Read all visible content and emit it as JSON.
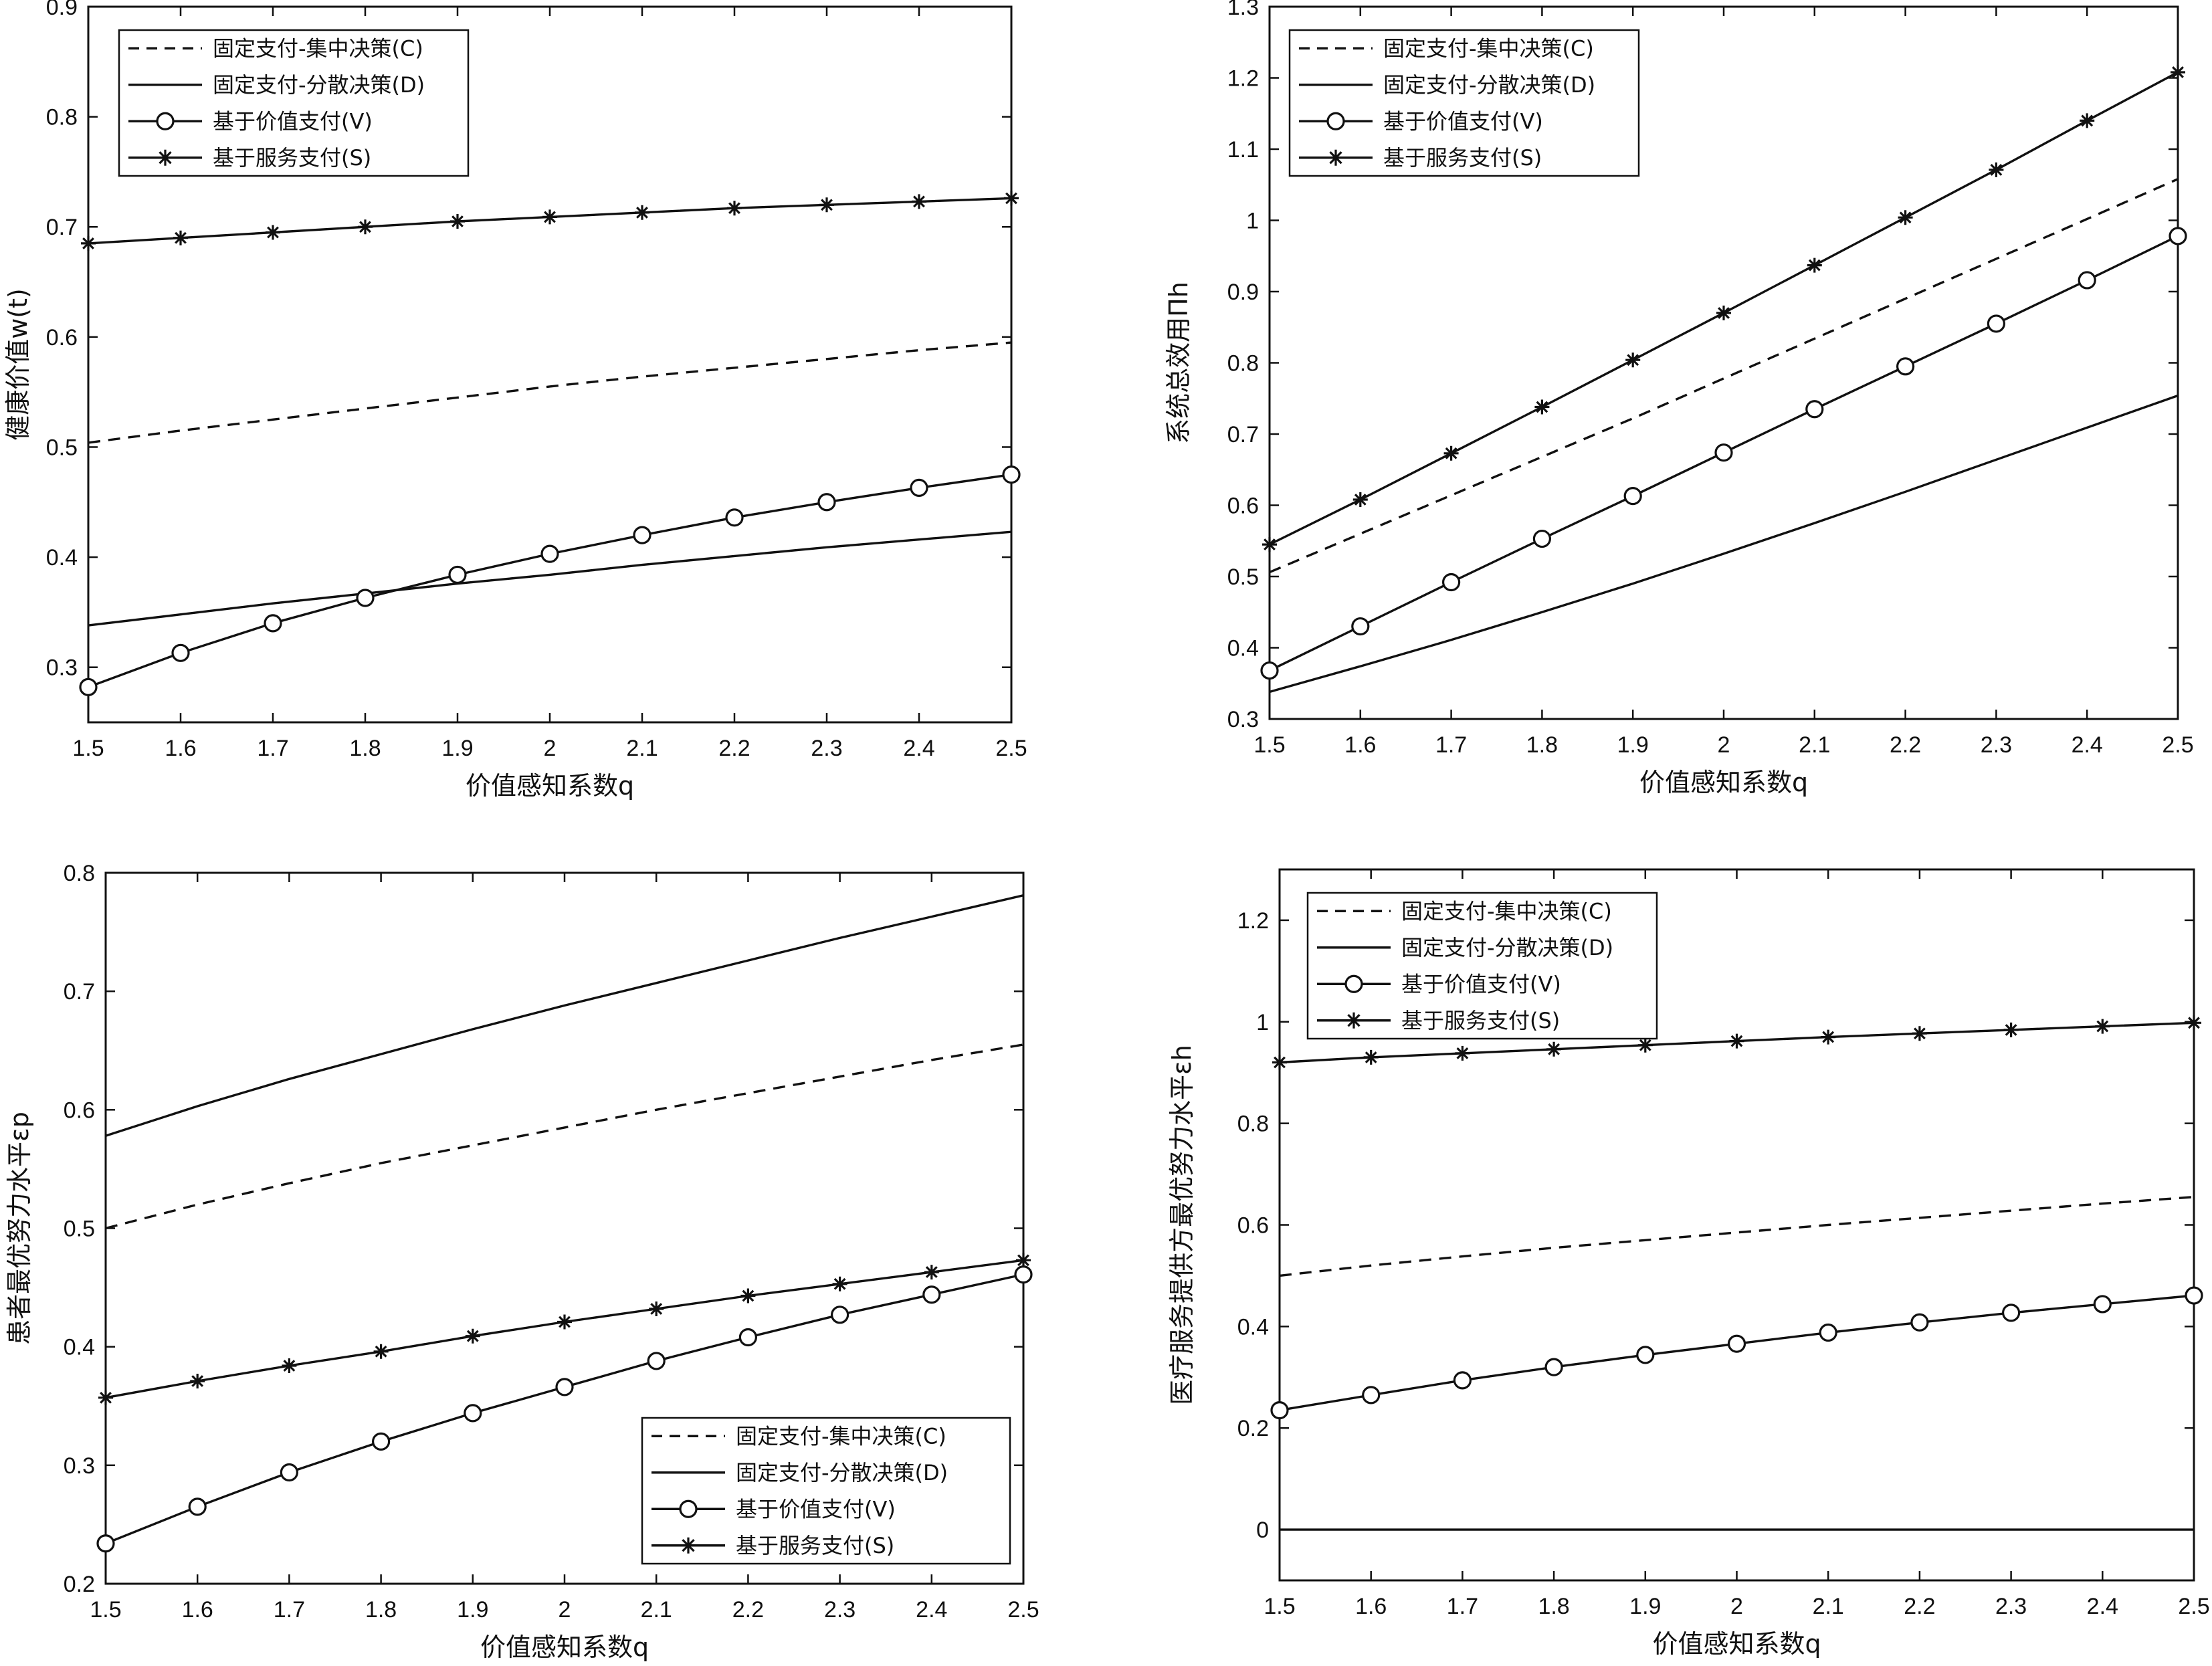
{
  "legend_labels": [
    "固定支付-集中决策(C)",
    "固定支付-分散决策(D)",
    "基于价值支付(V)",
    "基于服务支付(S)"
  ],
  "chart_data": [
    {
      "type": "line",
      "xlabel": "价值感知系数q",
      "ylabel": "健康价值w(t)",
      "x": [
        1.5,
        1.6,
        1.7,
        1.8,
        1.9,
        2.0,
        2.1,
        2.2,
        2.3,
        2.4,
        2.5
      ],
      "xticks": [
        "1.5",
        "1.6",
        "1.7",
        "1.8",
        "1.9",
        "2",
        "2.1",
        "2.2",
        "2.3",
        "2.4",
        "2.5"
      ],
      "xlim": [
        1.5,
        2.5
      ],
      "ylim": [
        0.25,
        0.9
      ],
      "yticks": [
        "0.3",
        "0.4",
        "0.5",
        "0.6",
        "0.7",
        "0.8",
        "0.9"
      ],
      "legend_position": "top-left",
      "series": [
        {
          "name": "固定支付-集中决策(C)",
          "style": "dashed",
          "values": [
            0.504,
            0.515,
            0.525,
            0.535,
            0.545,
            0.555,
            0.564,
            0.572,
            0.58,
            0.588,
            0.595
          ]
        },
        {
          "name": "固定支付-分散决策(D)",
          "style": "solid",
          "values": [
            0.338,
            0.348,
            0.358,
            0.367,
            0.376,
            0.384,
            0.393,
            0.401,
            0.409,
            0.416,
            0.423
          ]
        },
        {
          "name": "基于价值支付(V)",
          "style": "circle",
          "values": [
            0.282,
            0.313,
            0.34,
            0.363,
            0.384,
            0.403,
            0.42,
            0.436,
            0.45,
            0.463,
            0.475
          ]
        },
        {
          "name": "基于服务支付(S)",
          "style": "star",
          "values": [
            0.685,
            0.69,
            0.695,
            0.7,
            0.705,
            0.709,
            0.713,
            0.717,
            0.72,
            0.723,
            0.726
          ]
        }
      ]
    },
    {
      "type": "line",
      "xlabel": "价值感知系数q",
      "ylabel": "系统总效用Πh",
      "x": [
        1.5,
        1.6,
        1.7,
        1.8,
        1.9,
        2.0,
        2.1,
        2.2,
        2.3,
        2.4,
        2.5
      ],
      "xticks": [
        "1.5",
        "1.6",
        "1.7",
        "1.8",
        "1.9",
        "2",
        "2.1",
        "2.2",
        "2.3",
        "2.4",
        "2.5"
      ],
      "xlim": [
        1.5,
        2.5
      ],
      "ylim": [
        0.3,
        1.3
      ],
      "yticks": [
        "0.3",
        "0.4",
        "0.5",
        "0.6",
        "0.7",
        "0.8",
        "0.9",
        "1",
        "1.1",
        "1.2",
        "1.3"
      ],
      "legend_position": "top-left",
      "series": [
        {
          "name": "固定支付-集中决策(C)",
          "style": "dashed",
          "values": [
            0.506,
            0.56,
            0.614,
            0.668,
            0.722,
            0.778,
            0.834,
            0.89,
            0.946,
            1.002,
            1.058
          ]
        },
        {
          "name": "固定支付-分散决策(D)",
          "style": "solid",
          "values": [
            0.338,
            0.374,
            0.411,
            0.45,
            0.49,
            0.532,
            0.575,
            0.619,
            0.664,
            0.709,
            0.754
          ]
        },
        {
          "name": "基于价值支付(V)",
          "style": "circle",
          "values": [
            0.368,
            0.43,
            0.492,
            0.553,
            0.613,
            0.674,
            0.735,
            0.795,
            0.855,
            0.916,
            0.978
          ]
        },
        {
          "name": "基于服务支付(S)",
          "style": "star",
          "values": [
            0.545,
            0.608,
            0.673,
            0.738,
            0.804,
            0.87,
            0.937,
            1.004,
            1.071,
            1.14,
            1.208
          ]
        }
      ]
    },
    {
      "type": "line",
      "xlabel": "价值感知系数q",
      "ylabel": "患者最优努力水平εp",
      "x": [
        1.5,
        1.6,
        1.7,
        1.8,
        1.9,
        2.0,
        2.1,
        2.2,
        2.3,
        2.4,
        2.5
      ],
      "xticks": [
        "1.5",
        "1.6",
        "1.7",
        "1.8",
        "1.9",
        "2",
        "2.1",
        "2.2",
        "2.3",
        "2.4",
        "2.5"
      ],
      "xlim": [
        1.5,
        2.5
      ],
      "ylim": [
        0.2,
        0.8
      ],
      "yticks": [
        "0.2",
        "0.3",
        "0.4",
        "0.5",
        "0.6",
        "0.7",
        "0.8"
      ],
      "legend_position": "bottom-right",
      "series": [
        {
          "name": "固定支付-集中决策(C)",
          "style": "dashed",
          "values": [
            0.5,
            0.52,
            0.538,
            0.555,
            0.57,
            0.585,
            0.6,
            0.614,
            0.628,
            0.642,
            0.655
          ]
        },
        {
          "name": "固定支付-分散决策(D)",
          "style": "solid",
          "values": [
            0.578,
            0.603,
            0.626,
            0.647,
            0.668,
            0.688,
            0.707,
            0.726,
            0.745,
            0.763,
            0.781
          ]
        },
        {
          "name": "基于价值支付(V)",
          "style": "circle",
          "values": [
            0.234,
            0.265,
            0.294,
            0.32,
            0.344,
            0.366,
            0.388,
            0.408,
            0.427,
            0.444,
            0.461
          ]
        },
        {
          "name": "基于服务支付(S)",
          "style": "star",
          "values": [
            0.357,
            0.371,
            0.384,
            0.396,
            0.409,
            0.421,
            0.432,
            0.443,
            0.453,
            0.463,
            0.473
          ]
        }
      ]
    },
    {
      "type": "line",
      "xlabel": "价值感知系数q",
      "ylabel": "医疗服务提供方最优努力水平εh",
      "x": [
        1.5,
        1.6,
        1.7,
        1.8,
        1.9,
        2.0,
        2.1,
        2.2,
        2.3,
        2.4,
        2.5
      ],
      "xticks": [
        "1.5",
        "1.6",
        "1.7",
        "1.8",
        "1.9",
        "2",
        "2.1",
        "2.2",
        "2.3",
        "2.4",
        "2.5"
      ],
      "xlim": [
        1.5,
        2.5
      ],
      "ylim": [
        -0.1,
        1.3
      ],
      "yticks": [
        "0",
        "0.2",
        "0.4",
        "0.6",
        "0.8",
        "1",
        "1.2"
      ],
      "legend_position": "top-left",
      "series": [
        {
          "name": "固定支付-集中决策(C)",
          "style": "dashed",
          "values": [
            0.5,
            0.52,
            0.538,
            0.555,
            0.57,
            0.585,
            0.6,
            0.614,
            0.628,
            0.642,
            0.655
          ]
        },
        {
          "name": "固定支付-分散决策(D)",
          "style": "solid",
          "values": [
            0.0,
            0.0,
            0.0,
            0.0,
            0.0,
            0.0,
            0.0,
            0.0,
            0.0,
            0.0,
            0.0
          ]
        },
        {
          "name": "基于价值支付(V)",
          "style": "circle",
          "values": [
            0.235,
            0.265,
            0.294,
            0.32,
            0.344,
            0.366,
            0.388,
            0.408,
            0.427,
            0.444,
            0.461
          ]
        },
        {
          "name": "基于服务支付(S)",
          "style": "star",
          "values": [
            0.92,
            0.93,
            0.938,
            0.946,
            0.954,
            0.962,
            0.97,
            0.977,
            0.984,
            0.991,
            0.998
          ]
        }
      ]
    }
  ]
}
